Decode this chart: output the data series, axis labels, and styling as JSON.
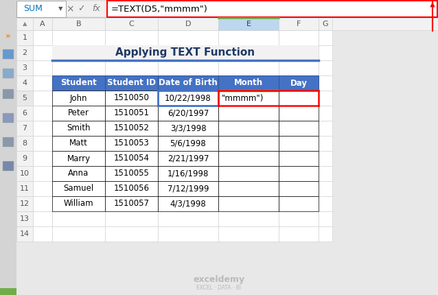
{
  "title": "Applying TEXT Function",
  "formula_bar_text": "=TEXT(D5,\"mmmm\")",
  "formula_bar_cell": "SUM",
  "col_headers": [
    "Student",
    "Student ID",
    "Date of Birth",
    "Month",
    "Day"
  ],
  "rows": [
    [
      "John",
      "1510050",
      "10/22/1998",
      "",
      ""
    ],
    [
      "Peter",
      "1510051",
      "6/20/1997",
      "",
      ""
    ],
    [
      "Smith",
      "1510052",
      "3/3/1998",
      "",
      ""
    ],
    [
      "Matt",
      "1510053",
      "5/6/1998",
      "",
      ""
    ],
    [
      "Marry",
      "1510054",
      "2/21/1997",
      "",
      ""
    ],
    [
      "Anna",
      "1510055",
      "1/16/1998",
      "",
      ""
    ],
    [
      "Samuel",
      "1510056",
      "7/12/1999",
      "",
      ""
    ],
    [
      "William",
      "1510057",
      "4/3/1998",
      "",
      ""
    ]
  ],
  "e5_text": "\"mmmm\")",
  "header_bg": "#4472C4",
  "header_fg": "#FFFFFF",
  "title_color": "#1F3864",
  "red_color": "#FF0000",
  "blue_border": "#4472C4",
  "green_border": "#70AD47",
  "selected_col_bg": "#BDD7EE",
  "toolbar_bg": "#E8E8E8",
  "sidebar_icon_bg": "#D8D8D8",
  "watermark_text": "exceldemy",
  "watermark_sub": "EXCEL · DATA · BI"
}
